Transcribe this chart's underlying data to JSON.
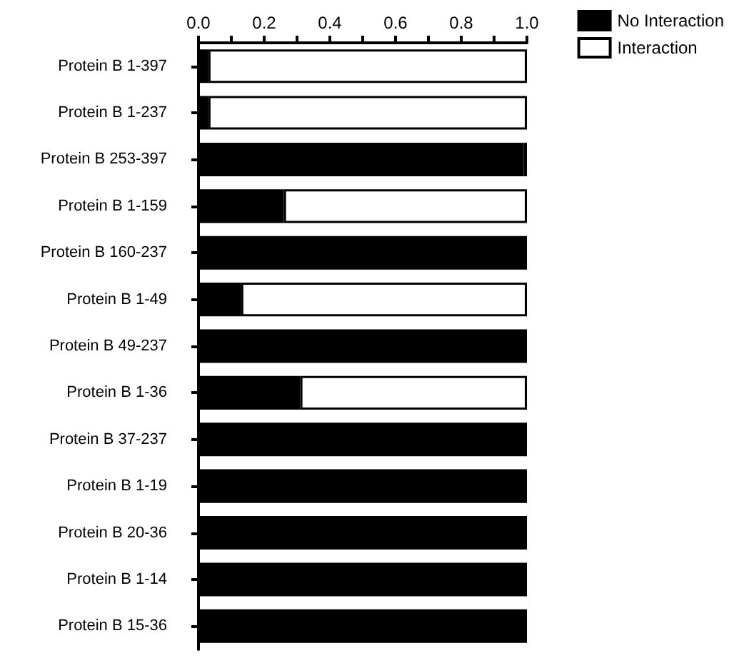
{
  "chart_data": {
    "type": "bar",
    "orientation": "horizontal",
    "stacked": true,
    "categories": [
      "Protein B 1-397",
      "Protein B 1-237",
      "Protein B 253-397",
      "Protein B 1-159",
      "Protein B 160-237",
      "Protein B 1-49",
      "Protein B 49-237",
      "Protein B 1-36",
      "Protein B 37-237",
      "Protein B 1-19",
      "Protein B 20-36",
      "Protein B 1-14",
      "Protein B 15-36"
    ],
    "series": [
      {
        "name": "No Interaction",
        "color": "#000000",
        "values": [
          0.03,
          0.03,
          0.99,
          0.26,
          1,
          0.13,
          1,
          0.31,
          1,
          1,
          1,
          1,
          1
        ]
      },
      {
        "name": "Interaction",
        "color": "#ffffff",
        "values": [
          0.97,
          0.97,
          0.01,
          0.74,
          0,
          0.87,
          0,
          0.69,
          0,
          0,
          0,
          0,
          0
        ]
      }
    ],
    "xlim": [
      0,
      1
    ],
    "xticks": [
      {
        "value": 0,
        "label": "0.0"
      },
      {
        "value": 0.1,
        "label": null
      },
      0.2,
      {
        "value": 0.3,
        "label": null
      },
      0.4,
      {
        "value": 0.5,
        "label": null
      },
      0.6,
      {
        "value": 0.7,
        "label": null
      },
      0.8,
      {
        "value": 0.9,
        "label": null
      },
      {
        "value": 1,
        "label": "1.0"
      }
    ],
    "legend": "top right",
    "grid": false
  }
}
